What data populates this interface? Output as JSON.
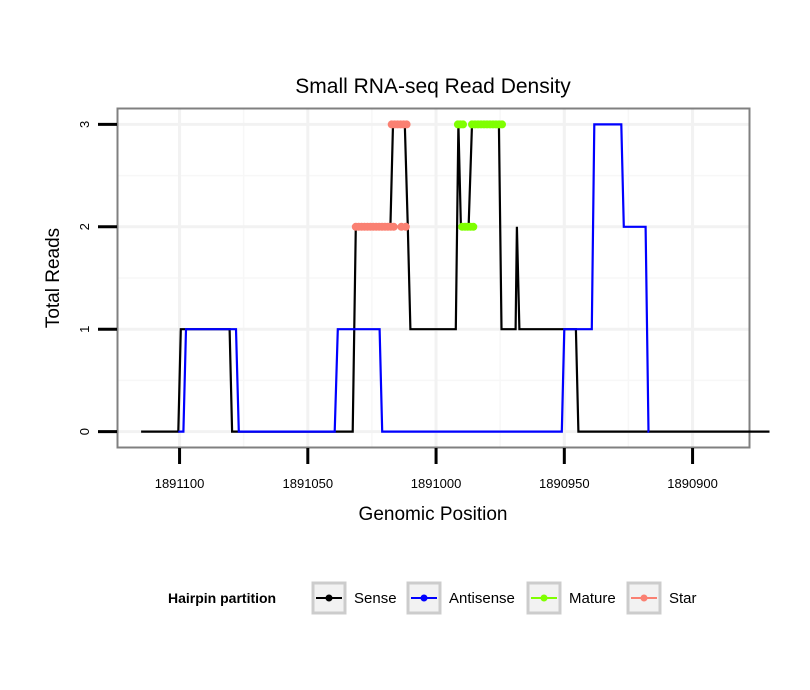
{
  "chart_data": {
    "type": "line",
    "title": "Small RNA-seq Read Density",
    "xlabel": "Genomic Position",
    "ylabel": "Total Reads",
    "x_reversed": true,
    "xlim": [
      1891124,
      1890878
    ],
    "ylim": [
      -0.15,
      3.15
    ],
    "x_ticks": [
      {
        "value": 1891100,
        "label": "1891100"
      },
      {
        "value": 1891050,
        "label": "1891050"
      },
      {
        "value": 1891000,
        "label": "1891000"
      },
      {
        "value": 1890950,
        "label": "1890950"
      },
      {
        "value": 1890900,
        "label": "1890900"
      }
    ],
    "y_ticks": [
      {
        "value": 0,
        "label": "0"
      },
      {
        "value": 1,
        "label": "1"
      },
      {
        "value": 2,
        "label": "2"
      },
      {
        "value": 3,
        "label": "3"
      }
    ],
    "legend": {
      "title": "Hairpin partition",
      "position": "bottom",
      "entries": [
        {
          "label": "Sense",
          "color": "#000000"
        },
        {
          "label": "Antisense",
          "color": "#0000ff"
        },
        {
          "label": "Mature",
          "color": "#7fff00"
        },
        {
          "label": "Star",
          "color": "#fa8072"
        }
      ]
    },
    "series": [
      {
        "name": "Sense",
        "style": "line",
        "color": "#000000",
        "points": [
          [
            1891115,
            0
          ],
          [
            1891100.5,
            0
          ],
          [
            1891099.5,
            1
          ],
          [
            1891080.5,
            1
          ],
          [
            1891079.5,
            0
          ],
          [
            1891032.5,
            0
          ],
          [
            1891031.3,
            2
          ],
          [
            1891017.8,
            2
          ],
          [
            1891016.8,
            3
          ],
          [
            1891012.2,
            3
          ],
          [
            1891011,
            2
          ],
          [
            1891010,
            1
          ],
          [
            1890992.3,
            1
          ],
          [
            1890991.3,
            3
          ],
          [
            1890990.3,
            2
          ],
          [
            1890987.3,
            2
          ],
          [
            1890986,
            3
          ],
          [
            1890975.5,
            3
          ],
          [
            1890974.5,
            1
          ],
          [
            1890969,
            1
          ],
          [
            1890968.5,
            2
          ],
          [
            1890967.5,
            1
          ],
          [
            1890945.5,
            1
          ],
          [
            1890944.5,
            0
          ],
          [
            1890870,
            0
          ]
        ]
      },
      {
        "name": "Antisense",
        "style": "line",
        "color": "#0000ff",
        "points": [
          [
            1891100.5,
            0
          ],
          [
            1891098.5,
            0
          ],
          [
            1891097.5,
            1
          ],
          [
            1891078,
            1
          ],
          [
            1891076.9,
            0
          ],
          [
            1891039.5,
            0
          ],
          [
            1891038.3,
            1
          ],
          [
            1891022,
            1
          ],
          [
            1891021,
            0
          ],
          [
            1890951,
            0
          ],
          [
            1890950,
            1
          ],
          [
            1890939.3,
            1
          ],
          [
            1890938.3,
            3
          ],
          [
            1890927.8,
            3
          ],
          [
            1890926.8,
            2
          ],
          [
            1890918.3,
            2
          ],
          [
            1890917.2,
            0
          ],
          [
            1890917,
            0
          ]
        ]
      },
      {
        "name": "Mature",
        "style": "points",
        "color": "#7fff00",
        "segments": [
          {
            "from": 1890991.5,
            "to": 1890989.5,
            "y": 3
          },
          {
            "from": 1890989.8,
            "to": 1890985.5,
            "y": 2
          },
          {
            "from": 1890986,
            "to": 1890974.3,
            "y": 3
          }
        ]
      },
      {
        "name": "Star",
        "style": "points",
        "color": "#fa8072",
        "segments": [
          {
            "from": 1891031.3,
            "to": 1891016.5,
            "y": 2
          },
          {
            "from": 1891017.3,
            "to": 1891011.5,
            "y": 3
          },
          {
            "from": 1891013.5,
            "to": 1891011.8,
            "y": 2
          }
        ]
      }
    ]
  }
}
